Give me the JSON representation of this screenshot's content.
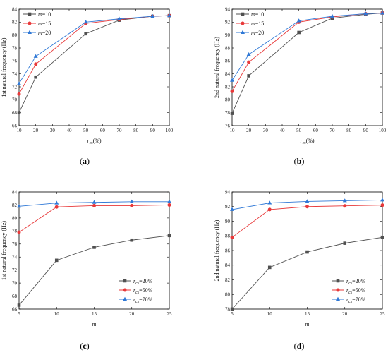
{
  "chart_data": [
    {
      "type": "line",
      "caption": "(a)",
      "xlabel": "r_cs(%)",
      "ylabel": "1st natural frequency (Hz)",
      "xlim": [
        10,
        100
      ],
      "ylim": [
        66,
        84
      ],
      "xticks": [
        10,
        20,
        30,
        40,
        50,
        60,
        70,
        80,
        90,
        100
      ],
      "yticks": [
        66,
        68,
        70,
        72,
        74,
        76,
        78,
        80,
        82,
        84
      ],
      "legend_position": "top-left",
      "x": [
        10,
        20,
        50,
        70,
        90,
        100
      ],
      "series": [
        {
          "label_main": "m",
          "label_rest": "=10",
          "color": "#505050",
          "marker": "square",
          "values": [
            68.0,
            73.5,
            80.2,
            82.3,
            82.9,
            83.0
          ]
        },
        {
          "label_main": "m",
          "label_rest": "=15",
          "color": "#e8393a",
          "marker": "circle",
          "values": [
            70.9,
            75.5,
            81.8,
            82.4,
            82.9,
            83.0
          ]
        },
        {
          "label_main": "m",
          "label_rest": "=20",
          "color": "#2f78d6",
          "marker": "triangle",
          "values": [
            72.5,
            76.7,
            82.0,
            82.5,
            82.9,
            83.0
          ]
        }
      ]
    },
    {
      "type": "line",
      "caption": "(b)",
      "xlabel": "r_cs(%)",
      "ylabel": "2nd natural frequency (Hz)",
      "xlim": [
        10,
        100
      ],
      "ylim": [
        76,
        94
      ],
      "xticks": [
        10,
        20,
        30,
        40,
        50,
        60,
        70,
        80,
        90,
        100
      ],
      "yticks": [
        76,
        78,
        80,
        82,
        84,
        86,
        88,
        90,
        92,
        94
      ],
      "legend_position": "top-left",
      "x": [
        10,
        20,
        50,
        70,
        90,
        100
      ],
      "series": [
        {
          "label_main": "m",
          "label_rest": "=10",
          "color": "#505050",
          "marker": "square",
          "values": [
            77.9,
            83.7,
            90.4,
            92.6,
            93.2,
            93.4
          ]
        },
        {
          "label_main": "m",
          "label_rest": "=15",
          "color": "#e8393a",
          "marker": "circle",
          "values": [
            81.3,
            85.8,
            92.0,
            92.8,
            93.3,
            93.4
          ]
        },
        {
          "label_main": "m",
          "label_rest": "=20",
          "color": "#2f78d6",
          "marker": "triangle",
          "values": [
            83.0,
            87.0,
            92.2,
            92.9,
            93.3,
            93.4
          ]
        }
      ]
    },
    {
      "type": "line",
      "caption": "(c)",
      "xlabel": "m",
      "ylabel": "1st natural frequency (Hz)",
      "xlim": [
        5,
        25
      ],
      "ylim": [
        66,
        84
      ],
      "xticks": [
        5,
        10,
        15,
        20,
        25
      ],
      "yticks": [
        66,
        68,
        70,
        72,
        74,
        76,
        78,
        80,
        82,
        84
      ],
      "legend_position": "bottom-right",
      "x": [
        5,
        10,
        15,
        20,
        25
      ],
      "series": [
        {
          "label_main": "r",
          "label_sub": "cs",
          "label_rest": "=20%",
          "color": "#505050",
          "marker": "square",
          "values": [
            66.6,
            73.5,
            75.5,
            76.6,
            77.3
          ]
        },
        {
          "label_main": "r",
          "label_sub": "cs",
          "label_rest": "=50%",
          "color": "#e8393a",
          "marker": "circle",
          "values": [
            77.8,
            81.7,
            81.9,
            81.9,
            82.0
          ]
        },
        {
          "label_main": "r",
          "label_sub": "cs",
          "label_rest": "=70%",
          "color": "#2f78d6",
          "marker": "triangle",
          "values": [
            81.8,
            82.3,
            82.4,
            82.5,
            82.5
          ]
        }
      ]
    },
    {
      "type": "line",
      "caption": "(d)",
      "xlabel": "m",
      "ylabel": "2nd natural frequency (Hz)",
      "xlim": [
        5,
        25
      ],
      "ylim": [
        78,
        94
      ],
      "xticks": [
        5,
        10,
        15,
        20,
        25
      ],
      "yticks": [
        78,
        80,
        82,
        84,
        86,
        88,
        90,
        92,
        94
      ],
      "legend_position": "bottom-right",
      "x": [
        5,
        10,
        15,
        20,
        25
      ],
      "series": [
        {
          "label_main": "r",
          "label_sub": "cs",
          "label_rest": "=20%",
          "color": "#505050",
          "marker": "square",
          "values": [
            78.0,
            83.7,
            85.8,
            87.0,
            87.8
          ]
        },
        {
          "label_main": "r",
          "label_sub": "cs",
          "label_rest": "=50%",
          "color": "#e8393a",
          "marker": "circle",
          "values": [
            87.8,
            91.6,
            92.0,
            92.1,
            92.2
          ]
        },
        {
          "label_main": "r",
          "label_sub": "cs",
          "label_rest": "=70%",
          "color": "#2f78d6",
          "marker": "triangle",
          "values": [
            91.6,
            92.5,
            92.7,
            92.8,
            92.9
          ]
        }
      ]
    }
  ]
}
